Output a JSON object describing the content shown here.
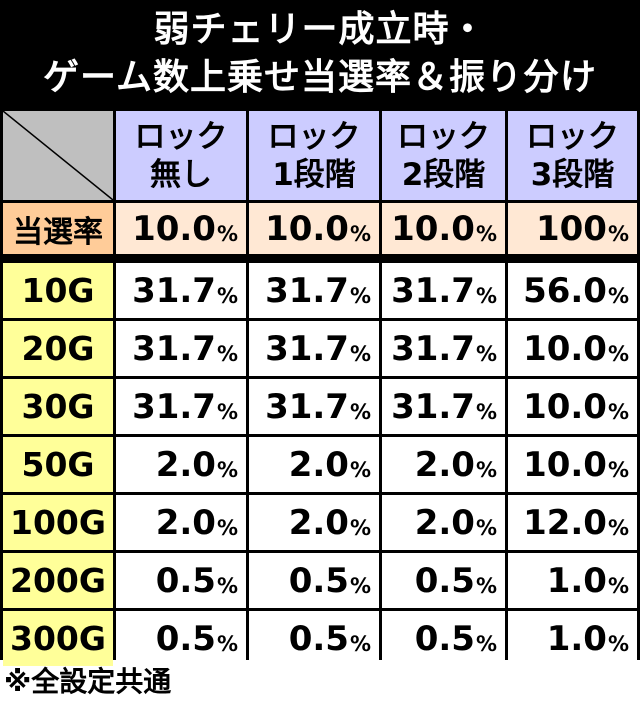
{
  "title": {
    "line1": "弱チェリー成立時・",
    "line2": "ゲーム数上乗せ当選率＆振り分け"
  },
  "columns": [
    {
      "line1": "ロック",
      "line2": "無し"
    },
    {
      "line1": "ロック",
      "line2": "1段階"
    },
    {
      "line1": "ロック",
      "line2": "2段階"
    },
    {
      "line1": "ロック",
      "line2": "3段階"
    }
  ],
  "rate_row": {
    "label": "当選率",
    "values": [
      "10.0",
      "10.0",
      "10.0",
      "100"
    ]
  },
  "unit": "%",
  "rows": [
    {
      "label": "10G",
      "values": [
        "31.7",
        "31.7",
        "31.7",
        "56.0"
      ]
    },
    {
      "label": "20G",
      "values": [
        "31.7",
        "31.7",
        "31.7",
        "10.0"
      ]
    },
    {
      "label": "30G",
      "values": [
        "31.7",
        "31.7",
        "31.7",
        "10.0"
      ]
    },
    {
      "label": "50G",
      "values": [
        "2.0",
        "2.0",
        "2.0",
        "10.0"
      ]
    },
    {
      "label": "100G",
      "values": [
        "2.0",
        "2.0",
        "2.0",
        "12.0"
      ]
    },
    {
      "label": "200G",
      "values": [
        "0.5",
        "0.5",
        "0.5",
        "1.0"
      ]
    },
    {
      "label": "300G",
      "values": [
        "0.5",
        "0.5",
        "0.5",
        "1.0"
      ]
    }
  ],
  "footer": "※全設定共通",
  "colors": {
    "title_bg": "#000000",
    "header_bg": "#ccccff",
    "rate_label_bg": "#ffcc99",
    "rate_value_bg": "#ffe8d4",
    "row_label_bg": "#ffff99",
    "corner_bg": "#bfbfbf"
  }
}
